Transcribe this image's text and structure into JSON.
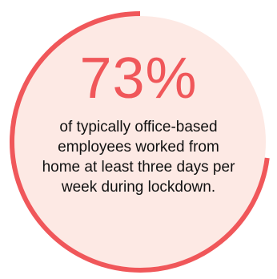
{
  "colors": {
    "fill": "#fde9e4",
    "ring": "#f0575a",
    "value_text": "#f0575a",
    "caption_text": "#111111"
  },
  "stat": {
    "value": "73%",
    "caption": "of typically office-based employees worked from home at least three days per week during lockdown."
  },
  "chart_data": {
    "type": "pie",
    "title": "",
    "categories": [
      "worked from home at least three days per week"
    ],
    "values": [
      73
    ],
    "unit": "%",
    "max": 100
  }
}
